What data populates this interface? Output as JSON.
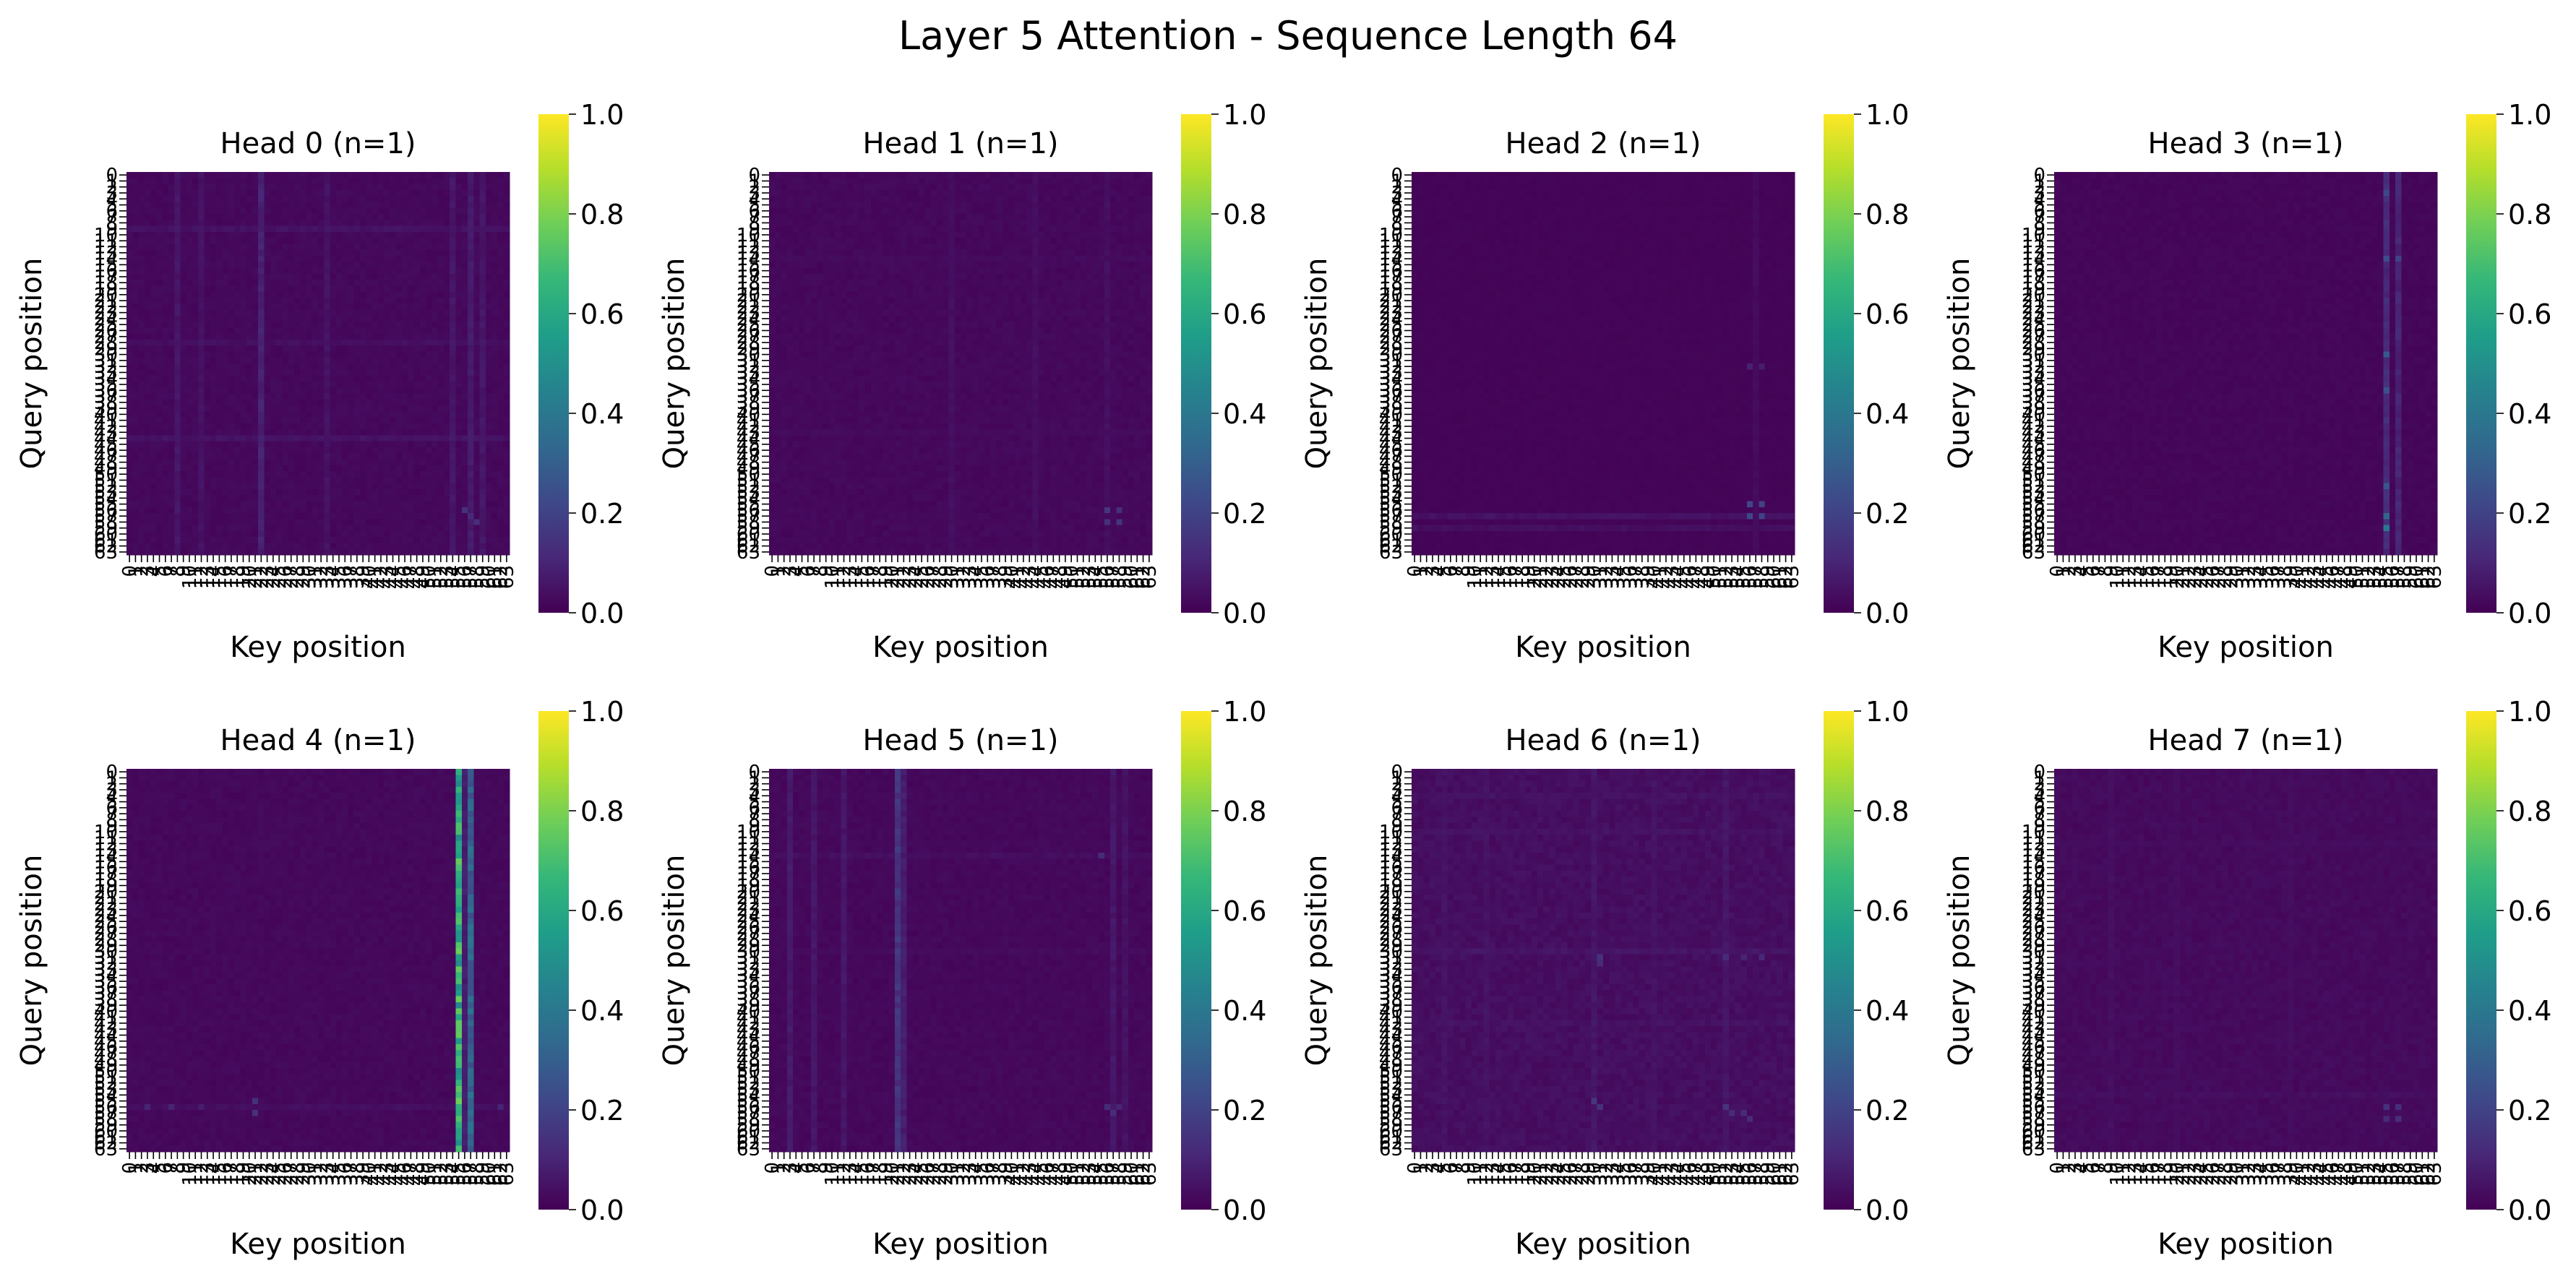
{
  "figure": {
    "title": "Layer 5 Attention - Sequence Length 64"
  },
  "colormap": {
    "name": "viridis",
    "stops": [
      "#440154",
      "#482878",
      "#3e4989",
      "#31688e",
      "#26828e",
      "#1f9e89",
      "#35b779",
      "#6ece58",
      "#b5de2b",
      "#fde725"
    ]
  },
  "chart_data": [
    {
      "type": "heatmap",
      "title": "Head 0 (n=1)",
      "xlabel": "Key position",
      "ylabel": "Query position",
      "size": 64,
      "vmin": 0,
      "vmax": 1,
      "colorbar_ticks": [
        "0.0",
        "0.2",
        "0.4",
        "0.6",
        "0.8",
        "1.0"
      ],
      "base_level": 0.02,
      "column_emphasis": [
        {
          "col": 8,
          "value": 0.06
        },
        {
          "col": 12,
          "value": 0.05
        },
        {
          "col": 22,
          "value": 0.09
        },
        {
          "col": 33,
          "value": 0.05
        },
        {
          "col": 54,
          "value": 0.06
        },
        {
          "col": 57,
          "value": 0.07
        },
        {
          "col": 59,
          "value": 0.06
        }
      ],
      "row_emphasis": [
        {
          "row": 9,
          "value": 0.05
        },
        {
          "row": 28,
          "value": 0.04
        },
        {
          "row": 44,
          "value": 0.05
        }
      ],
      "hotspots": [
        {
          "row": 56,
          "col": 56,
          "value": 0.14
        },
        {
          "row": 57,
          "col": 57,
          "value": 0.12
        },
        {
          "row": 58,
          "col": 58,
          "value": 0.13
        }
      ]
    },
    {
      "type": "heatmap",
      "title": "Head 1 (n=1)",
      "xlabel": "Key position",
      "ylabel": "Query position",
      "size": 64,
      "vmin": 0,
      "vmax": 1,
      "colorbar_ticks": [
        "0.0",
        "0.2",
        "0.4",
        "0.6",
        "0.8",
        "1.0"
      ],
      "base_level": 0.02,
      "column_emphasis": [
        {
          "col": 30,
          "value": 0.04
        },
        {
          "col": 44,
          "value": 0.04
        },
        {
          "col": 56,
          "value": 0.04
        }
      ],
      "row_emphasis": [
        {
          "row": 14,
          "value": 0.03
        },
        {
          "row": 43,
          "value": 0.03
        }
      ],
      "hotspots": [
        {
          "row": 56,
          "col": 56,
          "value": 0.16
        },
        {
          "row": 56,
          "col": 58,
          "value": 0.14
        },
        {
          "row": 58,
          "col": 56,
          "value": 0.14
        },
        {
          "row": 58,
          "col": 58,
          "value": 0.15
        }
      ]
    },
    {
      "type": "heatmap",
      "title": "Head 2 (n=1)",
      "xlabel": "Key position",
      "ylabel": "Query position",
      "size": 64,
      "vmin": 0,
      "vmax": 1,
      "colorbar_ticks": [
        "0.0",
        "0.2",
        "0.4",
        "0.6",
        "0.8",
        "1.0"
      ],
      "base_level": 0.01,
      "column_emphasis": [
        {
          "col": 57,
          "value": 0.03
        }
      ],
      "row_emphasis": [
        {
          "row": 57,
          "value": 0.05
        },
        {
          "row": 59,
          "value": 0.04
        }
      ],
      "hotspots": [
        {
          "row": 32,
          "col": 56,
          "value": 0.09
        },
        {
          "row": 32,
          "col": 58,
          "value": 0.08
        },
        {
          "row": 55,
          "col": 56,
          "value": 0.22
        },
        {
          "row": 55,
          "col": 58,
          "value": 0.2
        },
        {
          "row": 57,
          "col": 56,
          "value": 0.22
        },
        {
          "row": 57,
          "col": 58,
          "value": 0.2
        }
      ]
    },
    {
      "type": "heatmap",
      "title": "Head 3 (n=1)",
      "xlabel": "Key position",
      "ylabel": "Query position",
      "size": 64,
      "vmin": 0,
      "vmax": 1,
      "colorbar_ticks": [
        "0.0",
        "0.2",
        "0.4",
        "0.6",
        "0.8",
        "1.0"
      ],
      "base_level": 0.015,
      "column_emphasis": [
        {
          "col": 55,
          "value": 0.12
        },
        {
          "col": 57,
          "value": 0.1
        }
      ],
      "row_emphasis": [],
      "hotspots": [
        {
          "row": 3,
          "col": 55,
          "value": 0.22
        },
        {
          "row": 14,
          "col": 55,
          "value": 0.24
        },
        {
          "row": 14,
          "col": 57,
          "value": 0.2
        },
        {
          "row": 30,
          "col": 55,
          "value": 0.28
        },
        {
          "row": 36,
          "col": 55,
          "value": 0.25
        },
        {
          "row": 52,
          "col": 55,
          "value": 0.27
        },
        {
          "row": 57,
          "col": 55,
          "value": 0.32
        },
        {
          "row": 59,
          "col": 55,
          "value": 0.4
        }
      ]
    },
    {
      "type": "heatmap",
      "title": "Head 4 (n=1)",
      "xlabel": "Key position",
      "ylabel": "Query position",
      "size": 64,
      "vmin": 0,
      "vmax": 1,
      "colorbar_ticks": [
        "0.0",
        "0.2",
        "0.4",
        "0.6",
        "0.8",
        "1.0"
      ],
      "base_level": 0.02,
      "column_emphasis": [
        {
          "col": 55,
          "value": 0.62
        },
        {
          "col": 56,
          "value": 0.08
        },
        {
          "col": 57,
          "value": 0.32
        }
      ],
      "row_emphasis": [
        {
          "row": 56,
          "value": 0.04
        }
      ],
      "hotspots": [
        {
          "row": 56,
          "col": 3,
          "value": 0.1
        },
        {
          "row": 56,
          "col": 7,
          "value": 0.1
        },
        {
          "row": 56,
          "col": 12,
          "value": 0.08
        },
        {
          "row": 55,
          "col": 21,
          "value": 0.14
        },
        {
          "row": 57,
          "col": 21,
          "value": 0.14
        },
        {
          "row": 56,
          "col": 62,
          "value": 0.1
        },
        {
          "row": 33,
          "col": 55,
          "value": 0.75
        },
        {
          "row": 58,
          "col": 55,
          "value": 0.72
        }
      ]
    },
    {
      "type": "heatmap",
      "title": "Head 5 (n=1)",
      "xlabel": "Key position",
      "ylabel": "Query position",
      "size": 64,
      "vmin": 0,
      "vmax": 1,
      "colorbar_ticks": [
        "0.0",
        "0.2",
        "0.4",
        "0.6",
        "0.8",
        "1.0"
      ],
      "base_level": 0.02,
      "column_emphasis": [
        {
          "col": 3,
          "value": 0.07
        },
        {
          "col": 7,
          "value": 0.06
        },
        {
          "col": 12,
          "value": 0.06
        },
        {
          "col": 21,
          "value": 0.15
        },
        {
          "col": 22,
          "value": 0.08
        },
        {
          "col": 57,
          "value": 0.06
        },
        {
          "col": 59,
          "value": 0.05
        }
      ],
      "row_emphasis": [
        {
          "row": 14,
          "value": 0.04
        },
        {
          "row": 30,
          "value": 0.03
        }
      ],
      "hotspots": [
        {
          "row": 14,
          "col": 55,
          "value": 0.12
        },
        {
          "row": 56,
          "col": 56,
          "value": 0.12
        },
        {
          "row": 57,
          "col": 57,
          "value": 0.13
        },
        {
          "row": 56,
          "col": 58,
          "value": 0.1
        }
      ]
    },
    {
      "type": "heatmap",
      "title": "Head 6 (n=1)",
      "xlabel": "Key position",
      "ylabel": "Query position",
      "size": 64,
      "vmin": 0,
      "vmax": 1,
      "colorbar_ticks": [
        "0.0",
        "0.2",
        "0.4",
        "0.6",
        "0.8",
        "1.0"
      ],
      "base_level": 0.035,
      "column_emphasis": [
        {
          "col": 5,
          "value": 0.05
        },
        {
          "col": 12,
          "value": 0.05
        },
        {
          "col": 30,
          "value": 0.06
        },
        {
          "col": 40,
          "value": 0.05
        },
        {
          "col": 52,
          "value": 0.06
        }
      ],
      "row_emphasis": [
        {
          "row": 4,
          "value": 0.05
        },
        {
          "row": 10,
          "value": 0.05
        },
        {
          "row": 30,
          "value": 0.06
        },
        {
          "row": 42,
          "value": 0.05
        }
      ],
      "hotspots": [
        {
          "row": 31,
          "col": 31,
          "value": 0.14
        },
        {
          "row": 32,
          "col": 31,
          "value": 0.12
        },
        {
          "row": 31,
          "col": 52,
          "value": 0.12
        },
        {
          "row": 31,
          "col": 55,
          "value": 0.1
        },
        {
          "row": 31,
          "col": 58,
          "value": 0.11
        },
        {
          "row": 55,
          "col": 30,
          "value": 0.16
        },
        {
          "row": 56,
          "col": 31,
          "value": 0.14
        },
        {
          "row": 56,
          "col": 52,
          "value": 0.15
        },
        {
          "row": 57,
          "col": 53,
          "value": 0.12
        },
        {
          "row": 57,
          "col": 55,
          "value": 0.12
        },
        {
          "row": 58,
          "col": 56,
          "value": 0.12
        }
      ]
    },
    {
      "type": "heatmap",
      "title": "Head 7 (n=1)",
      "xlabel": "Key position",
      "ylabel": "Query position",
      "size": 64,
      "vmin": 0,
      "vmax": 1,
      "colorbar_ticks": [
        "0.0",
        "0.2",
        "0.4",
        "0.6",
        "0.8",
        "1.0"
      ],
      "base_level": 0.025,
      "column_emphasis": [
        {
          "col": 9,
          "value": 0.04
        },
        {
          "col": 20,
          "value": 0.035
        },
        {
          "col": 39,
          "value": 0.035
        }
      ],
      "row_emphasis": [
        {
          "row": 12,
          "value": 0.035
        },
        {
          "row": 54,
          "value": 0.04
        }
      ],
      "hotspots": [
        {
          "row": 56,
          "col": 55,
          "value": 0.14
        },
        {
          "row": 56,
          "col": 57,
          "value": 0.13
        },
        {
          "row": 58,
          "col": 55,
          "value": 0.12
        },
        {
          "row": 58,
          "col": 57,
          "value": 0.13
        }
      ]
    }
  ]
}
